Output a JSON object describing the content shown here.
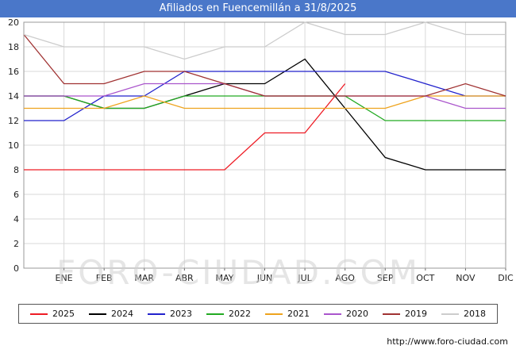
{
  "header": {
    "title": "Afiliados en Fuencemillán a 31/8/2025",
    "bar_color": "#4a77c9"
  },
  "watermark": "FORO-CIUDAD.COM",
  "footer": {
    "url": "http://www.foro-ciudad.com"
  },
  "chart_data": {
    "type": "line",
    "title": "Afiliados en Fuencemillán a 31/8/2025",
    "x_tick_labels": [
      "ENE",
      "FEB",
      "MAR",
      "ABR",
      "MAY",
      "JUN",
      "JUL",
      "AGO",
      "SEP",
      "OCT",
      "NOV",
      "DIC"
    ],
    "x_note": "each series has 13 points: value at chart left edge followed by the 12 monthly values ENE-DIC",
    "y_ticks": [
      0,
      2,
      4,
      6,
      8,
      10,
      12,
      14,
      16,
      18,
      20
    ],
    "ylim": [
      0,
      20
    ],
    "grid": true,
    "legend_position": "bottom",
    "series": [
      {
        "name": "2025",
        "color": "#ee1c25",
        "values": [
          8,
          8,
          8,
          8,
          8,
          8,
          11,
          11,
          15,
          null,
          null,
          null,
          null
        ]
      },
      {
        "name": "2024",
        "color": "#000000",
        "values": [
          14,
          14,
          13,
          13,
          14,
          15,
          15,
          17,
          13,
          9,
          8,
          8,
          8
        ]
      },
      {
        "name": "2023",
        "color": "#2222cc",
        "values": [
          12,
          12,
          14,
          14,
          16,
          16,
          16,
          16,
          16,
          16,
          15,
          14,
          14
        ]
      },
      {
        "name": "2022",
        "color": "#22aa22",
        "values": [
          14,
          14,
          13,
          13,
          14,
          14,
          14,
          14,
          14,
          12,
          12,
          12,
          12
        ]
      },
      {
        "name": "2021",
        "color": "#eea31d",
        "values": [
          13,
          13,
          13,
          14,
          13,
          13,
          13,
          13,
          13,
          13,
          14,
          14,
          14
        ]
      },
      {
        "name": "2020",
        "color": "#aa55cc",
        "values": [
          14,
          14,
          14,
          15,
          15,
          15,
          14,
          14,
          14,
          14,
          14,
          13,
          13
        ]
      },
      {
        "name": "2019",
        "color": "#a03232",
        "values": [
          19,
          15,
          15,
          16,
          16,
          15,
          14,
          14,
          14,
          14,
          14,
          15,
          14
        ]
      },
      {
        "name": "2018",
        "color": "#cccccc",
        "values": [
          19,
          18,
          18,
          18,
          17,
          18,
          18,
          20,
          19,
          19,
          20,
          19,
          19
        ]
      }
    ]
  }
}
